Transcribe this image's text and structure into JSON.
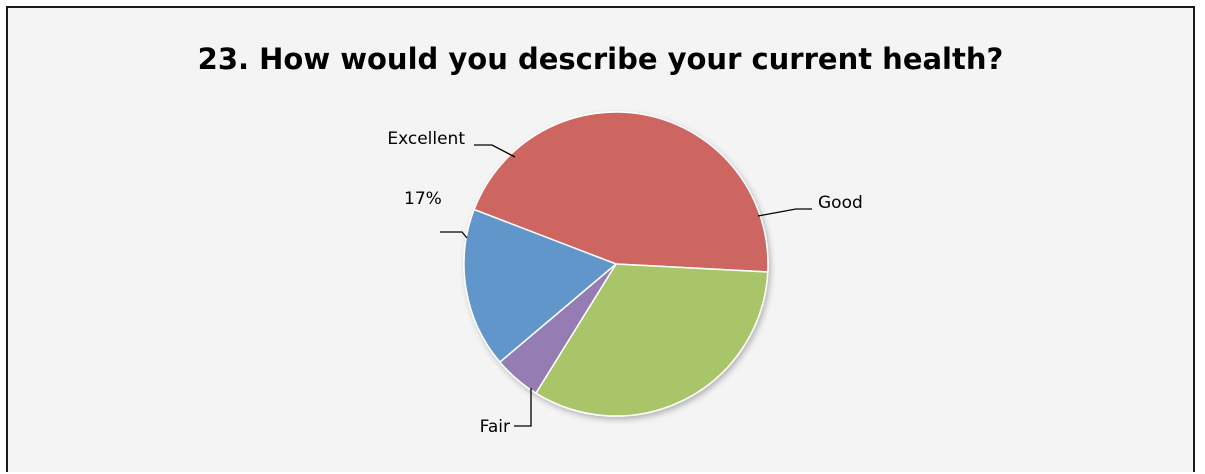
{
  "chart_data": {
    "type": "pie",
    "title": "23. How would you describe your current health?",
    "categories": [
      "Good",
      "Fair",
      "",
      "Excellent"
    ],
    "values": [
      45,
      33,
      5,
      17
    ],
    "colors": [
      "#CD6560",
      "#A9C56B",
      "#957BB3",
      "#6096CA"
    ],
    "annotations": [
      "17%"
    ],
    "legend": "none"
  }
}
